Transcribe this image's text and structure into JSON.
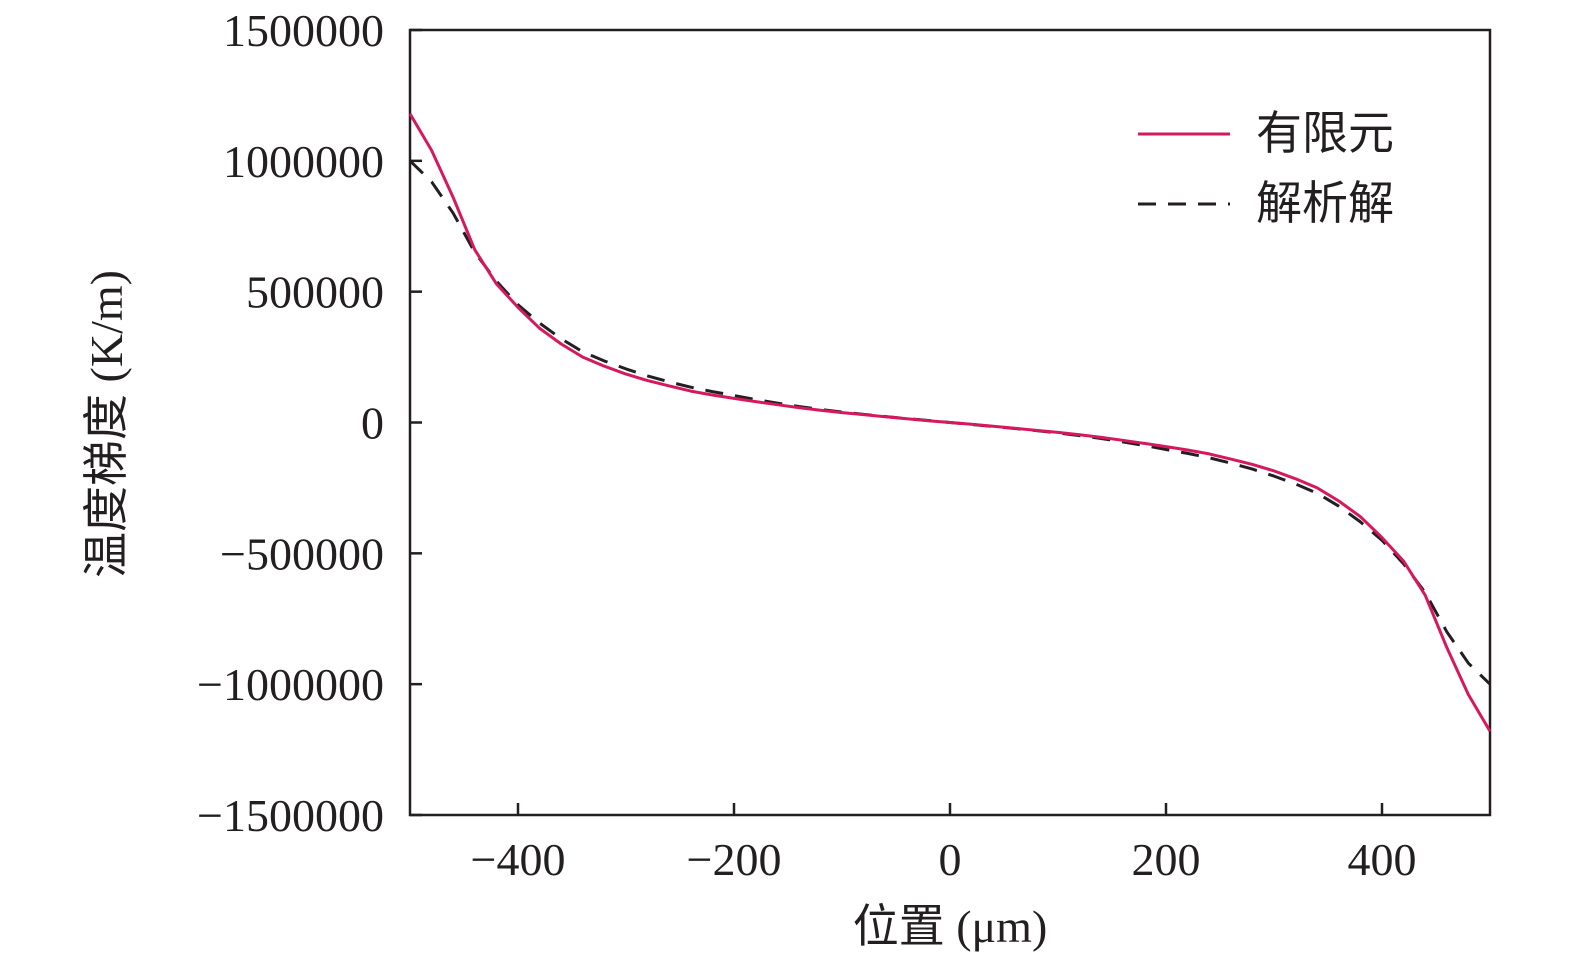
{
  "chart_data": {
    "type": "line",
    "title": "",
    "xlabel": "位置 (μm)",
    "ylabel": "温度梯度 (K/m)",
    "xlim": [
      -500,
      500
    ],
    "ylim": [
      -1500000,
      1500000
    ],
    "xticks": [
      -400,
      -200,
      0,
      200,
      400
    ],
    "xtick_labels": [
      "−400",
      "−200",
      "0",
      "200",
      "400"
    ],
    "yticks": [
      1500000,
      1000000,
      500000,
      0,
      -500000,
      -1000000,
      -1500000
    ],
    "ytick_labels": [
      "1500000",
      "1000000",
      "500000",
      "0",
      "−500000",
      "−1000000",
      "−1500000"
    ],
    "grid": false,
    "legend_position": "top-right",
    "series": [
      {
        "name": "有限元",
        "color": "#d6195e",
        "style": "solid",
        "x": [
          -500,
          -480,
          -460,
          -440,
          -420,
          -400,
          -380,
          -360,
          -340,
          -320,
          -300,
          -280,
          -260,
          -240,
          -220,
          -200,
          -180,
          -160,
          -140,
          -120,
          -100,
          -80,
          -60,
          -40,
          -20,
          0,
          20,
          40,
          60,
          80,
          100,
          120,
          140,
          160,
          180,
          200,
          220,
          240,
          260,
          280,
          300,
          320,
          340,
          360,
          380,
          400,
          420,
          440,
          460,
          480,
          500
        ],
        "y": [
          1180000,
          1040000,
          860000,
          660000,
          530000,
          440000,
          360000,
          300000,
          250000,
          215000,
          185000,
          160000,
          140000,
          120000,
          105000,
          92000,
          80000,
          68000,
          57000,
          47000,
          38000,
          30000,
          22000,
          14000,
          7000,
          0,
          -7000,
          -14000,
          -22000,
          -30000,
          -38000,
          -47000,
          -57000,
          -68000,
          -80000,
          -92000,
          -105000,
          -120000,
          -140000,
          -160000,
          -185000,
          -215000,
          -250000,
          -300000,
          -360000,
          -440000,
          -530000,
          -660000,
          -860000,
          -1040000,
          -1180000
        ]
      },
      {
        "name": "解析解",
        "color": "#231f20",
        "style": "dashed",
        "x": [
          -500,
          -480,
          -460,
          -440,
          -420,
          -400,
          -380,
          -360,
          -340,
          -320,
          -300,
          -280,
          -260,
          -240,
          -220,
          -200,
          -180,
          -160,
          -140,
          -120,
          -100,
          -80,
          -60,
          -40,
          -20,
          0,
          20,
          40,
          60,
          80,
          100,
          120,
          140,
          160,
          180,
          200,
          220,
          240,
          260,
          280,
          300,
          320,
          340,
          360,
          380,
          400,
          420,
          440,
          460,
          480,
          500
        ],
        "y": [
          1000000,
          920000,
          800000,
          650000,
          540000,
          450000,
          380000,
          320000,
          270000,
          235000,
          205000,
          178000,
          155000,
          135000,
          118000,
          103000,
          88000,
          74000,
          61000,
          50000,
          40000,
          31000,
          23000,
          15000,
          7500,
          0,
          -7500,
          -15000,
          -23000,
          -31000,
          -40000,
          -50000,
          -61000,
          -74000,
          -88000,
          -103000,
          -118000,
          -135000,
          -155000,
          -178000,
          -205000,
          -235000,
          -270000,
          -320000,
          -380000,
          -450000,
          -540000,
          -650000,
          -800000,
          -920000,
          -1000000
        ]
      }
    ]
  }
}
